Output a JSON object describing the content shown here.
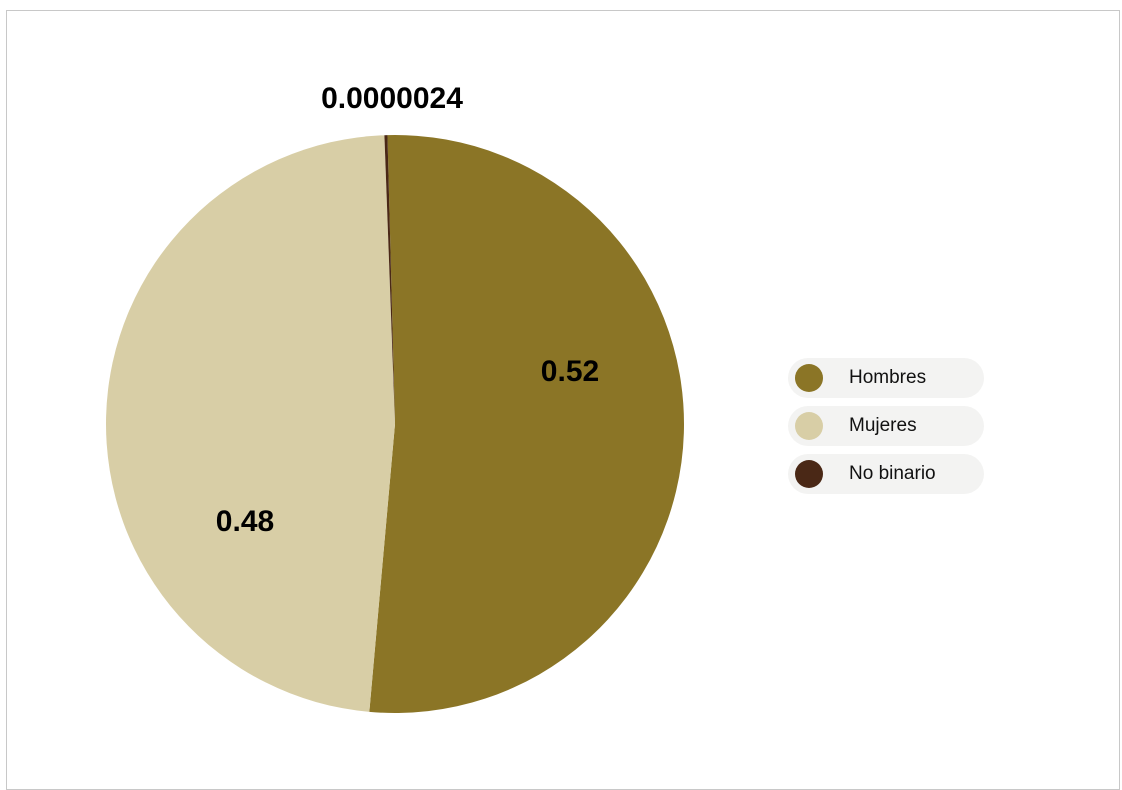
{
  "chart_data": {
    "type": "pie",
    "series": [
      {
        "name": "Hombres",
        "value": 0.52,
        "label": "0.52",
        "color": "#8b7526"
      },
      {
        "name": "Mujeres",
        "value": 0.48,
        "label": "0.48",
        "color": "#d8cea6"
      },
      {
        "name": "No binario",
        "value": 2.4e-06,
        "label": "0.0000024",
        "color": "#4a2816"
      }
    ],
    "legend_position": "right"
  }
}
